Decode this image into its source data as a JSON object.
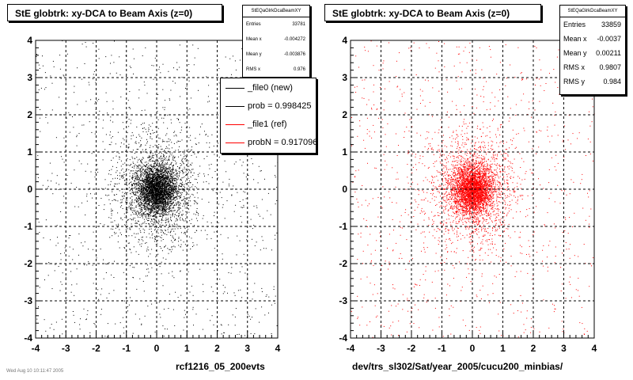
{
  "chart_data": [
    {
      "type": "scatter",
      "title": "StE globtrk: xy-DCA to Beam Axis (z=0)",
      "xlabel": "rcf1216_05_200evts",
      "ylabel": "",
      "xlim": [
        -4,
        4
      ],
      "ylim": [
        -4,
        4
      ],
      "xticks": [
        "-4",
        "-3",
        "-2",
        "-1",
        "0",
        "1",
        "2",
        "3",
        "4"
      ],
      "yticks": [
        "-4",
        "-3",
        "-2",
        "-1",
        "0",
        "1",
        "2",
        "3",
        "4"
      ],
      "grid": true,
      "marker_color": "#000000",
      "series": [
        {
          "name": "_file0 (new)",
          "color": "#000000",
          "entries": 33781,
          "mean_x": -0.004272,
          "mean_y": -0.003876,
          "rms_x": 0.976
        }
      ],
      "stats": {
        "title": "StEQaGlrkDcaBeamXY",
        "rows": [
          {
            "label": "Entries",
            "value": "33781"
          },
          {
            "label": "Mean x",
            "value": "-0.004272"
          },
          {
            "label": "Mean y",
            "value": "-0.003876"
          },
          {
            "label": "RMS x",
            "value": "0.976"
          }
        ]
      },
      "legend": {
        "placement": "top-right",
        "items": [
          {
            "text": "_file0 (new)",
            "color": "#000000"
          },
          {
            "text": "prob = 0.998425",
            "color": "#000000"
          },
          {
            "text": "_file1 (ref)",
            "color": "#ff0000"
          },
          {
            "text": "probN = 0.917096",
            "color": "#ff0000"
          }
        ]
      }
    },
    {
      "type": "scatter",
      "title": "StE globtrk: xy-DCA to Beam Axis (z=0)",
      "xlabel": "dev/trs_sl302/Sat/year_2005/cucu200_minbias/",
      "ylabel": "",
      "xlim": [
        -4,
        4
      ],
      "ylim": [
        -4,
        4
      ],
      "xticks": [
        "-4",
        "-3",
        "-2",
        "-1",
        "0",
        "1",
        "2",
        "3",
        "4"
      ],
      "yticks": [
        "-4",
        "-3",
        "-2",
        "-1",
        "0",
        "1",
        "2",
        "3",
        "4"
      ],
      "grid": true,
      "marker_color": "#ff0000",
      "series": [
        {
          "name": "_file1 (ref)",
          "color": "#ff0000",
          "entries": 33859,
          "mean_x": -0.0037,
          "mean_y": 0.00211,
          "rms_x": 0.9807,
          "rms_y": 0.984
        }
      ],
      "stats": {
        "title": "StEQaGlrkDcaBeamXY",
        "rows": [
          {
            "label": "Entries",
            "value": "33859"
          },
          {
            "label": "Mean x",
            "value": "-0.0037"
          },
          {
            "label": "Mean y",
            "value": "0.00211"
          },
          {
            "label": "RMS x",
            "value": "0.9807"
          },
          {
            "label": "RMS y",
            "value": "0.984"
          }
        ]
      }
    }
  ],
  "footer": {
    "timestamp": "Wed Aug 10 10:11:47 2005"
  }
}
